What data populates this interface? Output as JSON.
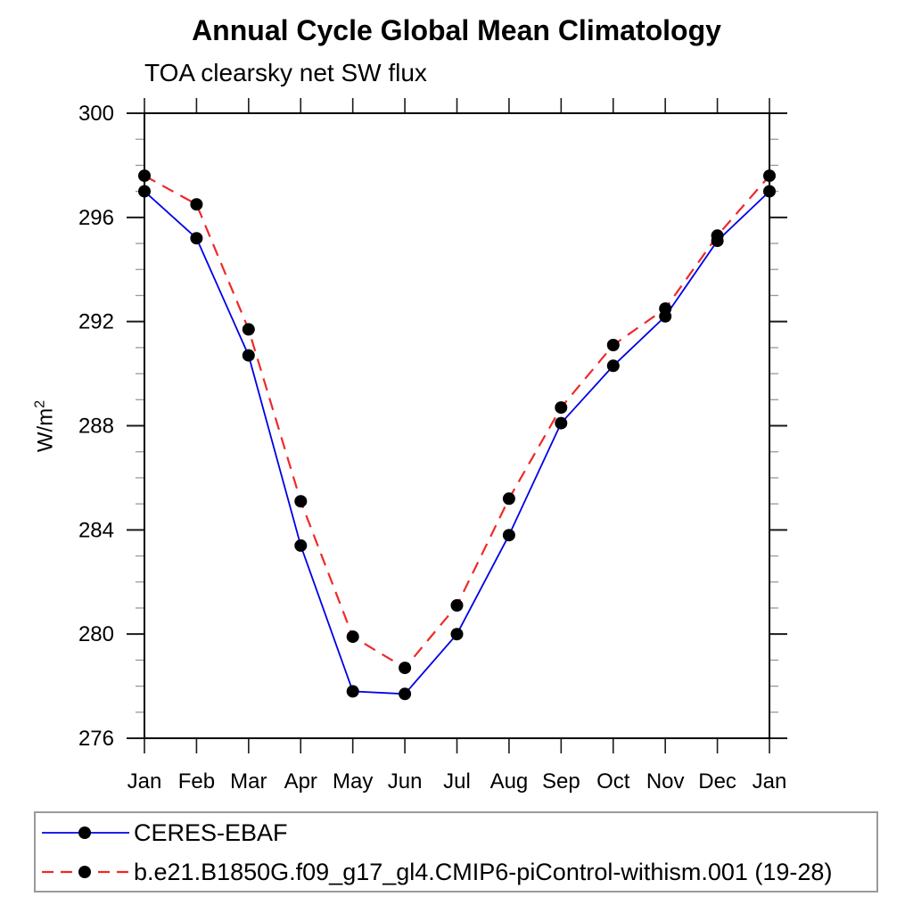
{
  "chart": {
    "title": "Annual Cycle Global Mean Climatology",
    "subtitle": "TOA clearsky net SW flux",
    "ylabel_base": "W/m",
    "ylabel_exponent": "2"
  },
  "chart_data": {
    "type": "line",
    "title": "Annual Cycle Global Mean Climatology",
    "subtitle": "TOA clearsky net SW flux",
    "xlabel": "",
    "ylabel": "W/m²",
    "categories": [
      "Jan",
      "Feb",
      "Mar",
      "Apr",
      "May",
      "Jun",
      "Jul",
      "Aug",
      "Sep",
      "Oct",
      "Nov",
      "Dec",
      "Jan"
    ],
    "ylim": [
      276,
      300
    ],
    "ytick_major_step": 4,
    "ytick_minor_step": 1,
    "ytick_major_labels": [
      "276",
      "280",
      "284",
      "288",
      "292",
      "296",
      "300"
    ],
    "grid": false,
    "legend_position": "bottom",
    "frame_color": "#000000",
    "major_tick_color": "#1a1a1a",
    "minor_tick_color": "#999999",
    "series": [
      {
        "name": "CERES-EBAF",
        "color": "#0000e6",
        "style": "solid",
        "marker": "circle",
        "marker_color": "#000000",
        "values": [
          297.0,
          295.2,
          290.7,
          283.4,
          277.8,
          277.7,
          280.0,
          283.8,
          288.1,
          290.3,
          292.2,
          295.1,
          297.0
        ]
      },
      {
        "name": "b.e21.B1850G.f09_g17_gl4.CMIP6-piControl-withism.001 (19-28)",
        "color": "#ef2929",
        "style": "dashed",
        "marker": "circle",
        "marker_color": "#000000",
        "values": [
          297.6,
          296.5,
          291.7,
          285.1,
          279.9,
          278.7,
          281.1,
          285.2,
          288.7,
          291.1,
          292.5,
          295.3,
          297.6
        ]
      }
    ]
  }
}
